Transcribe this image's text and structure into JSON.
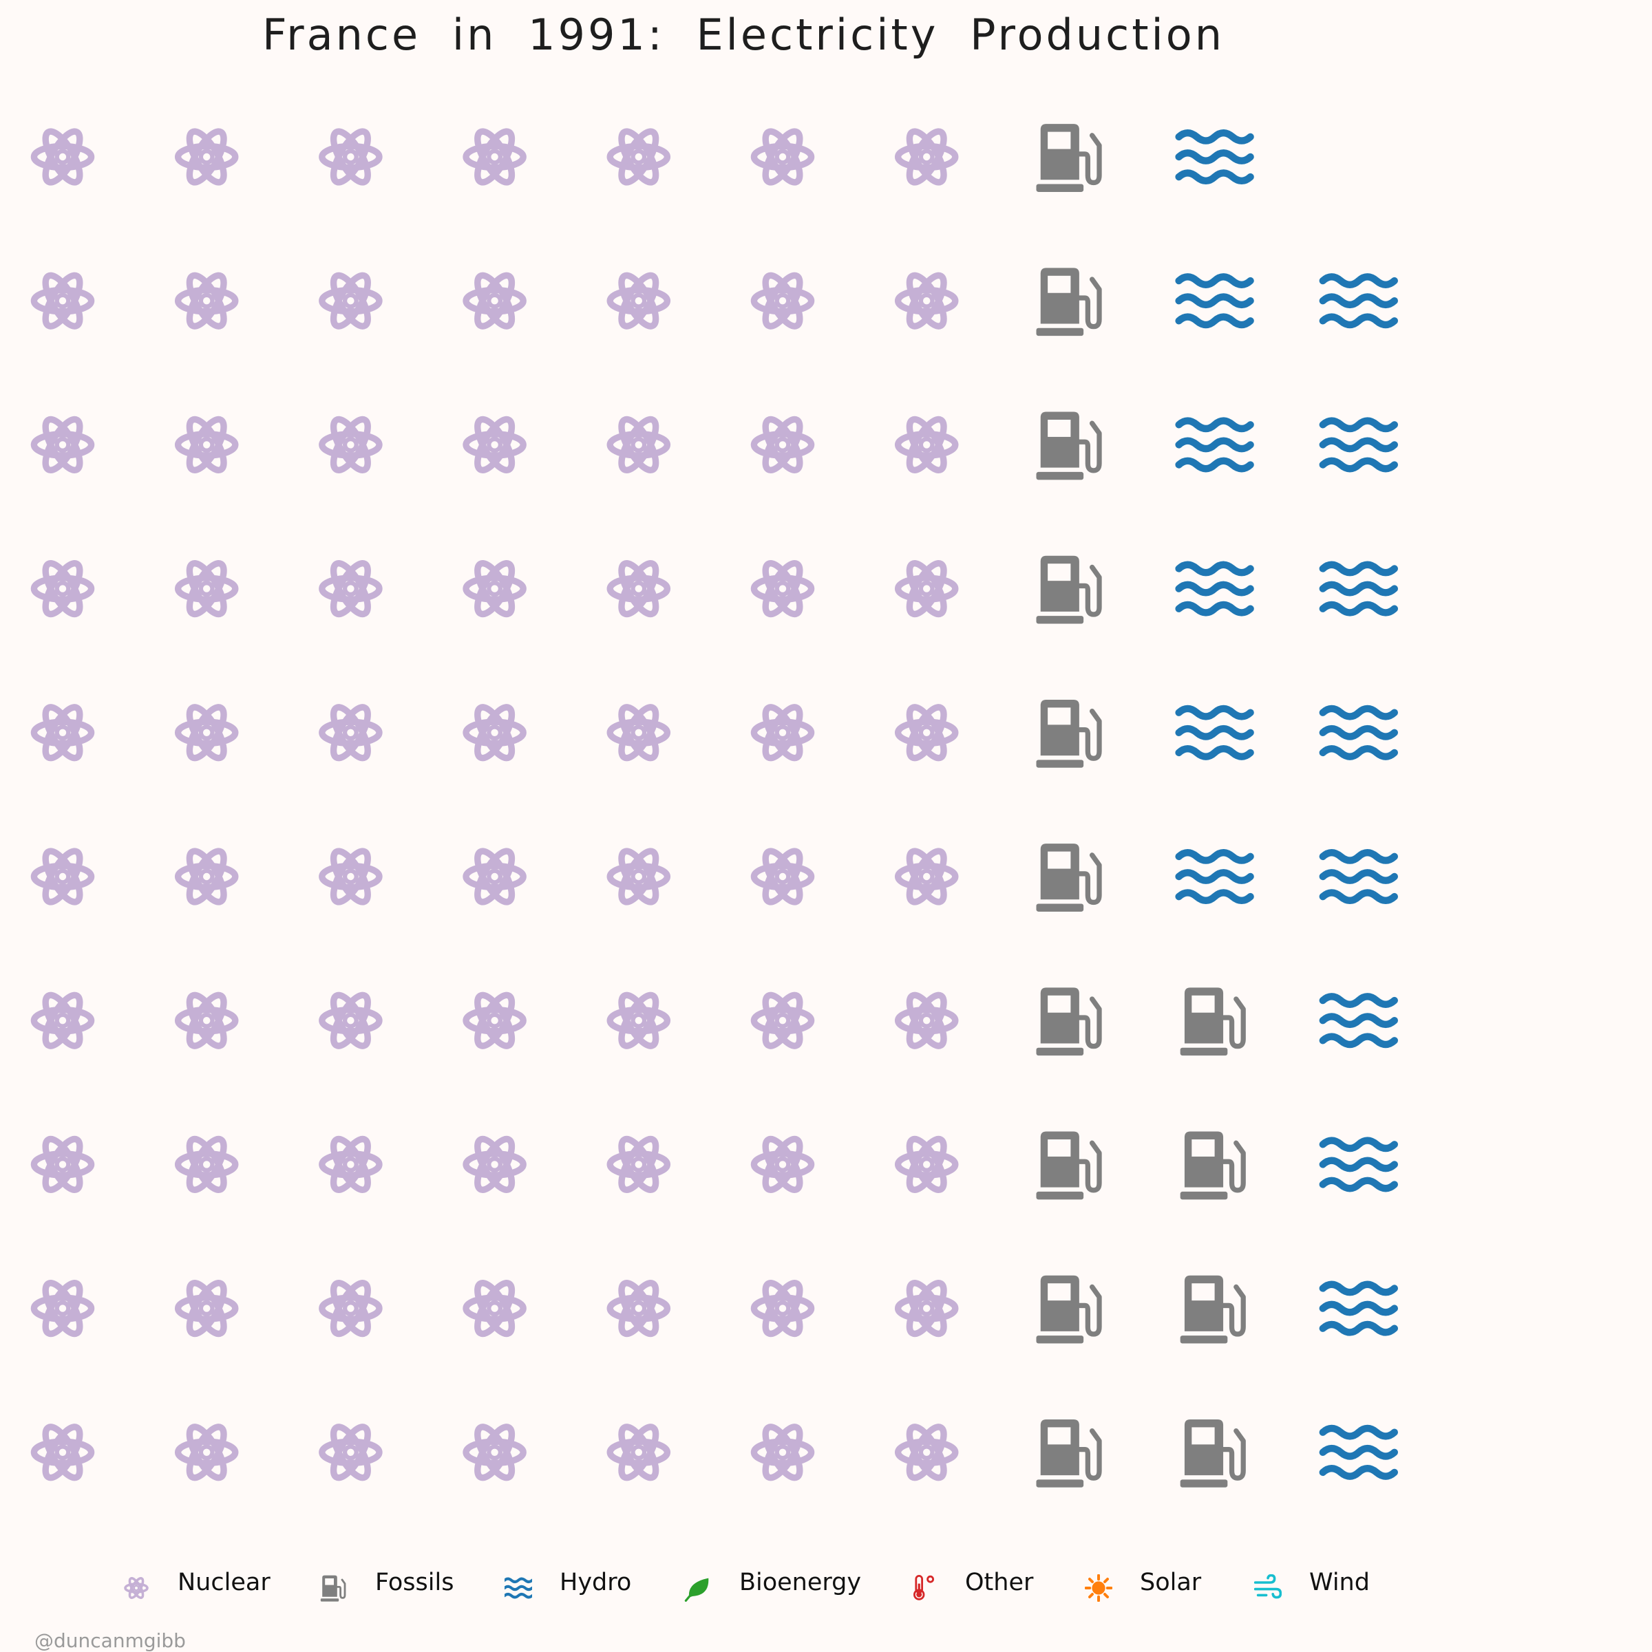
{
  "chart_data": {
    "type": "waffle",
    "title": "France in 1991: Electricity Production",
    "grid": {
      "columns": 10,
      "rows": 10
    },
    "series": [
      {
        "name": "Nuclear",
        "units": 70,
        "color": "#c5b0d5",
        "icon": "atom-icon"
      },
      {
        "name": "Fossils",
        "units": 14,
        "color": "#7f7f7f",
        "icon": "gas-pump-icon"
      },
      {
        "name": "Hydro",
        "units": 15,
        "color": "#1f77b4",
        "icon": "water-icon"
      },
      {
        "name": "Bioenergy",
        "units": 0,
        "color": "#2ca02c",
        "icon": "leaf-icon"
      },
      {
        "name": "Other",
        "units": 0,
        "color": "#d62728",
        "icon": "thermometer-icon"
      },
      {
        "name": "Solar",
        "units": 0,
        "color": "#ff7f0e",
        "icon": "sun-icon"
      },
      {
        "name": "Wind",
        "units": 0,
        "color": "#17becf",
        "icon": "wind-icon"
      }
    ],
    "legend_position": "bottom"
  },
  "credit": "@duncanmgibb"
}
